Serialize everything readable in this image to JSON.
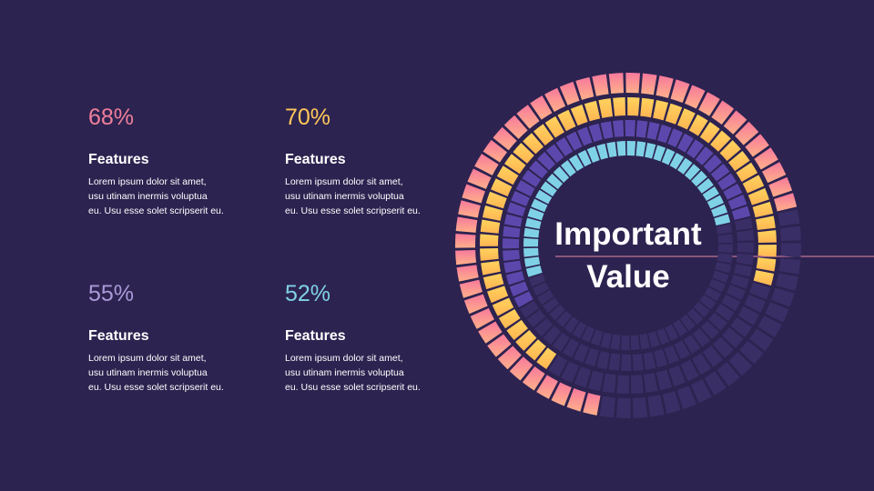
{
  "colors": {
    "background": "#2d2350",
    "track": "#3a2e66",
    "pink": "#ef7f9a",
    "yellow": "#ffc85a",
    "purple": "#5c48ad",
    "cyan": "#7fd1e6",
    "divider": "#e88aa8"
  },
  "cards": [
    {
      "percent": "68%",
      "title": "Features",
      "lines": [
        "Lorem ipsum dolor sit amet,",
        "usu utinam inermis voluptua",
        "eu. Usu esse solet scripserit eu."
      ],
      "color": "#ef7f9a"
    },
    {
      "percent": "70%",
      "title": "Features",
      "lines": [
        "Lorem ipsum dolor sit amet,",
        "usu utinam inermis voluptua",
        "eu. Usu esse solet scripserit eu."
      ],
      "color": "#ffc85a"
    },
    {
      "percent": "55%",
      "title": "Features",
      "lines": [
        "Lorem ipsum dolor sit amet,",
        "usu utinam inermis voluptua",
        "eu. Usu esse solet scripserit eu."
      ],
      "color": "#a99ad8"
    },
    {
      "percent": "52%",
      "title": "Features",
      "lines": [
        "Lorem ipsum dolor sit amet,",
        "usu utinam inermis voluptua",
        "eu. Usu esse solet scripserit eu."
      ],
      "color": "#7fd1e6"
    }
  ],
  "center": {
    "line1": "Important",
    "line2": "Value"
  },
  "chart_data": {
    "type": "radial-bar",
    "series": [
      {
        "value": 68
      },
      {
        "value": 70
      },
      {
        "value": 55
      },
      {
        "value": 52
      }
    ],
    "max": 100
  }
}
